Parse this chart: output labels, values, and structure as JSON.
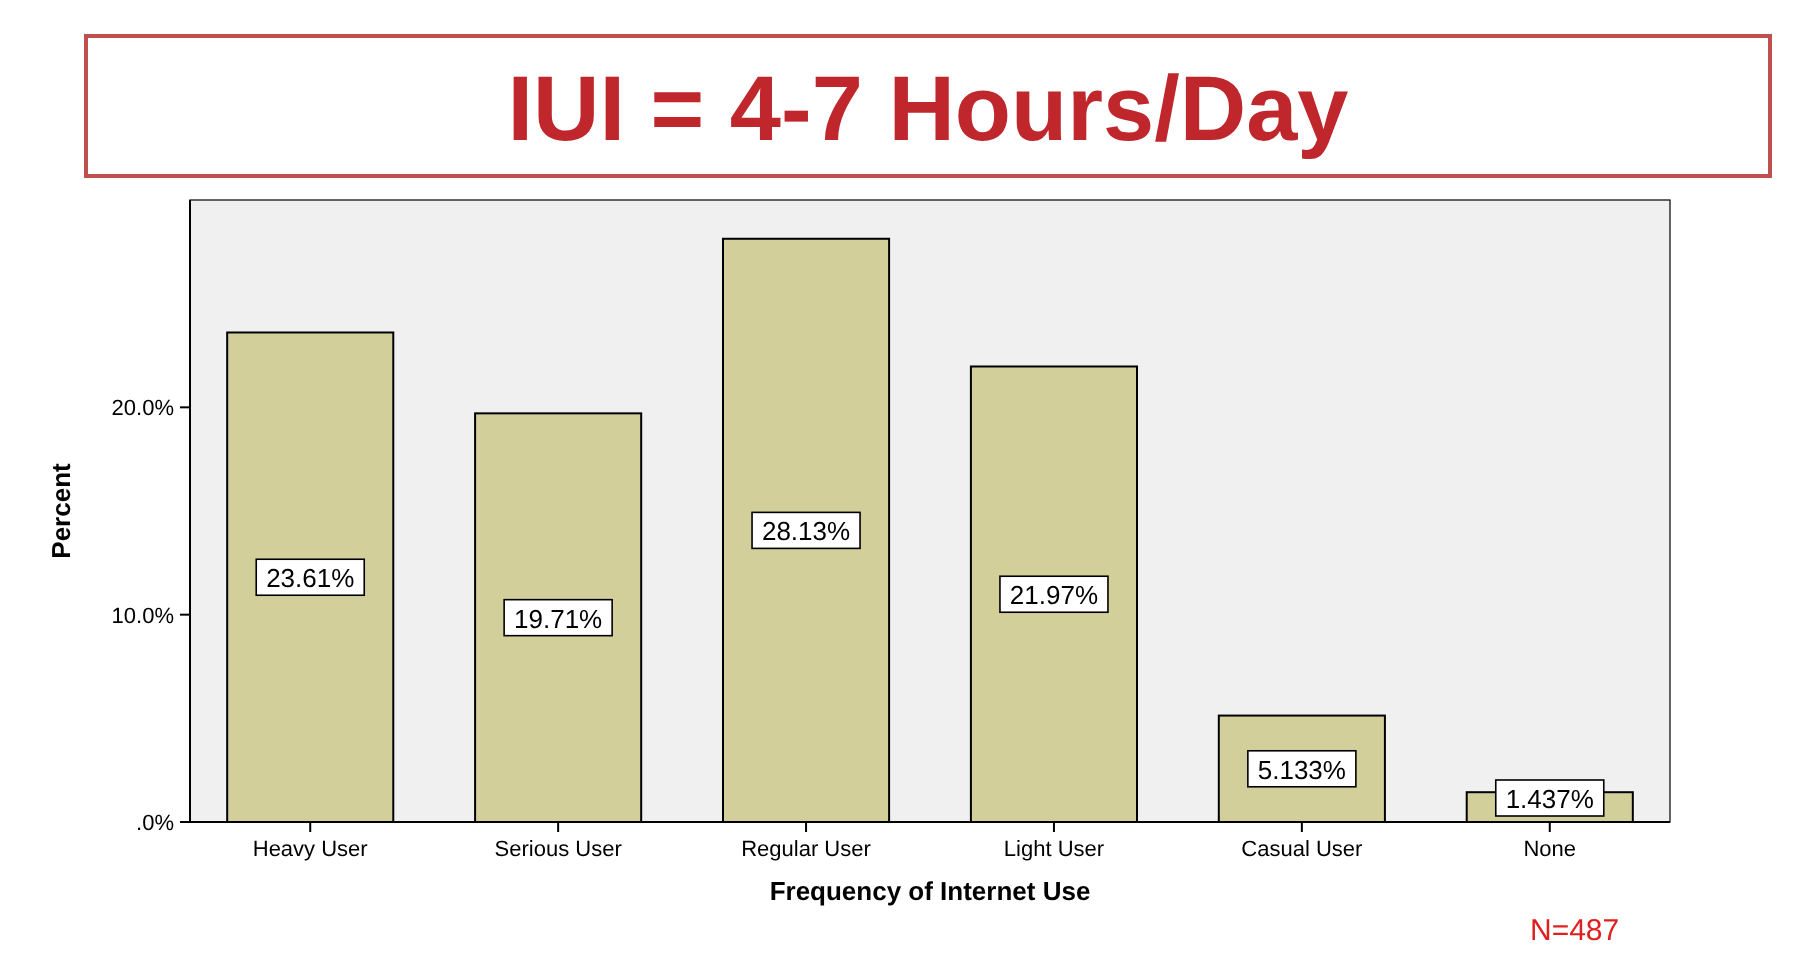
{
  "chart_data": {
    "type": "bar",
    "title": "IUI = 4-7 Hours/Day",
    "xlabel": "Frequency of Internet Use",
    "ylabel": "Percent",
    "categories": [
      "Heavy User",
      "Serious User",
      "Regular User",
      "Light User",
      "Casual User",
      "None"
    ],
    "values": [
      23.61,
      19.71,
      28.13,
      21.97,
      5.133,
      1.437
    ],
    "value_labels": [
      "23.61%",
      "19.71%",
      "28.13%",
      "21.97%",
      "5.133%",
      "1.437%"
    ],
    "color": "#d3cf9b",
    "ylim": [
      0,
      30
    ],
    "yticks": [
      {
        "value": 0,
        "label": ".0%"
      },
      {
        "value": 10,
        "label": "10.0%"
      },
      {
        "value": 20,
        "label": "20.0%"
      }
    ],
    "annotations": [
      "N=487"
    ]
  }
}
